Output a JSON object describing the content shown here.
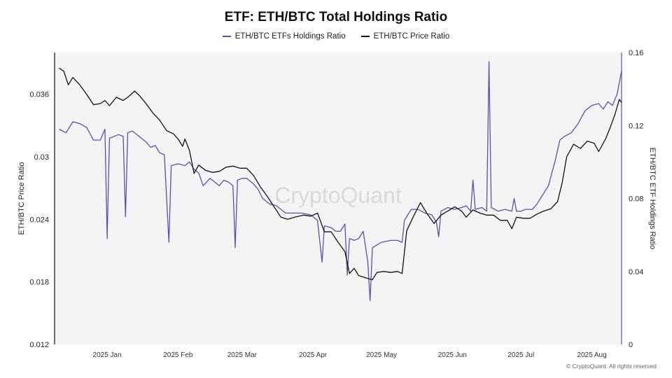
{
  "footer": "© CryptoQuant. All rights reserved",
  "watermark": "CryptoQuant",
  "chart_data": {
    "type": "line",
    "title": "ETF: ETH/BTC Total Holdings Ratio",
    "ylabel_left": "ETH/BTC Price Ratio",
    "ylabel_right": "ETH/BTC ETF Holdings Ratio",
    "ylim_left": [
      0.012,
      0.04
    ],
    "yticks_left": [
      0.012,
      0.018,
      0.024,
      0.03,
      0.036
    ],
    "ytick_labels_left": [
      "0.012",
      "0.018",
      "0.024",
      "0.03",
      "0.036"
    ],
    "ylim_right": [
      0,
      0.16
    ],
    "yticks_right": [
      0,
      0.04,
      0.08,
      0.12,
      0.16
    ],
    "ytick_labels_right": [
      "0",
      "0.04",
      "0.08",
      "0.12",
      "0.16"
    ],
    "xlim": [
      "2024-12-09",
      "2025-08-14"
    ],
    "xticks": [
      "2025-01-01",
      "2025-02-01",
      "2025-03-01",
      "2025-04-01",
      "2025-05-01",
      "2025-06-01",
      "2025-07-01",
      "2025-08-01"
    ],
    "xtick_labels": [
      "2025 Jan",
      "2025 Feb",
      "2025 Mar",
      "2025 Apr",
      "2025 May",
      "2025 Jun",
      "2025 Jul",
      "2025 Aug"
    ],
    "grid": false,
    "legend_position": "top-center",
    "series": [
      {
        "name": "ETH/BTC ETFs Holdings Ratio",
        "axis": "right",
        "color": "#5b4fb0",
        "points": [
          [
            "2024-12-11",
            0.118
          ],
          [
            "2024-12-14",
            0.116
          ],
          [
            "2024-12-17",
            0.122
          ],
          [
            "2024-12-20",
            0.121
          ],
          [
            "2024-12-23",
            0.119
          ],
          [
            "2024-12-26",
            0.112
          ],
          [
            "2024-12-29",
            0.112
          ],
          [
            "2024-12-31",
            0.118
          ],
          [
            "2025-01-01",
            0.058
          ],
          [
            "2025-01-02",
            0.113
          ],
          [
            "2025-01-06",
            0.115
          ],
          [
            "2025-01-08",
            0.114
          ],
          [
            "2025-01-09",
            0.07
          ],
          [
            "2025-01-10",
            0.116
          ],
          [
            "2025-01-12",
            0.117
          ],
          [
            "2025-01-15",
            0.114
          ],
          [
            "2025-01-18",
            0.111
          ],
          [
            "2025-01-20",
            0.108
          ],
          [
            "2025-01-22",
            0.109
          ],
          [
            "2025-01-24",
            0.105
          ],
          [
            "2025-01-26",
            0.104
          ],
          [
            "2025-01-28",
            0.056
          ],
          [
            "2025-01-29",
            0.098
          ],
          [
            "2025-02-01",
            0.099
          ],
          [
            "2025-02-04",
            0.098
          ],
          [
            "2025-02-06",
            0.1
          ],
          [
            "2025-02-08",
            0.096
          ],
          [
            "2025-02-10",
            0.094
          ],
          [
            "2025-02-12",
            0.087
          ],
          [
            "2025-02-15",
            0.091
          ],
          [
            "2025-02-17",
            0.089
          ],
          [
            "2025-02-19",
            0.087
          ],
          [
            "2025-02-21",
            0.09
          ],
          [
            "2025-02-23",
            0.089
          ],
          [
            "2025-02-25",
            0.087
          ],
          [
            "2025-02-26",
            0.053
          ],
          [
            "2025-02-27",
            0.09
          ],
          [
            "2025-03-01",
            0.091
          ],
          [
            "2025-03-03",
            0.091
          ],
          [
            "2025-03-06",
            0.088
          ],
          [
            "2025-03-08",
            0.085
          ],
          [
            "2025-03-10",
            0.08
          ],
          [
            "2025-03-13",
            0.077
          ],
          [
            "2025-03-16",
            0.076
          ],
          [
            "2025-03-20",
            0.072
          ],
          [
            "2025-03-24",
            0.072
          ],
          [
            "2025-03-27",
            0.072
          ],
          [
            "2025-03-31",
            0.071
          ],
          [
            "2025-04-03",
            0.068
          ],
          [
            "2025-04-05",
            0.045
          ],
          [
            "2025-04-06",
            0.065
          ],
          [
            "2025-04-09",
            0.064
          ],
          [
            "2025-04-11",
            0.062
          ],
          [
            "2025-04-13",
            0.062
          ],
          [
            "2025-04-15",
            0.066
          ],
          [
            "2025-04-16",
            0.038
          ],
          [
            "2025-04-17",
            0.058
          ],
          [
            "2025-04-19",
            0.057
          ],
          [
            "2025-04-21",
            0.058
          ],
          [
            "2025-04-23",
            0.062
          ],
          [
            "2025-04-25",
            0.045
          ],
          [
            "2025-04-26",
            0.024
          ],
          [
            "2025-04-27",
            0.053
          ],
          [
            "2025-05-01",
            0.056
          ],
          [
            "2025-05-05",
            0.057
          ],
          [
            "2025-05-08",
            0.057
          ],
          [
            "2025-05-10",
            0.056
          ],
          [
            "2025-05-11",
            0.068
          ],
          [
            "2025-05-14",
            0.074
          ],
          [
            "2025-05-17",
            0.074
          ],
          [
            "2025-05-20",
            0.072
          ],
          [
            "2025-05-23",
            0.071
          ],
          [
            "2025-05-25",
            0.067
          ],
          [
            "2025-05-26",
            0.059
          ],
          [
            "2025-05-27",
            0.073
          ],
          [
            "2025-05-30",
            0.075
          ],
          [
            "2025-06-02",
            0.074
          ],
          [
            "2025-06-05",
            0.075
          ],
          [
            "2025-06-07",
            0.076
          ],
          [
            "2025-06-09",
            0.073
          ],
          [
            "2025-06-10",
            0.09
          ],
          [
            "2025-06-11",
            0.074
          ],
          [
            "2025-06-14",
            0.075
          ],
          [
            "2025-06-16",
            0.073
          ],
          [
            "2025-06-17",
            0.155
          ],
          [
            "2025-06-18",
            0.075
          ],
          [
            "2025-06-21",
            0.073
          ],
          [
            "2025-06-24",
            0.074
          ],
          [
            "2025-06-27",
            0.073
          ],
          [
            "2025-06-28",
            0.08
          ],
          [
            "2025-06-29",
            0.073
          ],
          [
            "2025-07-01",
            0.073
          ],
          [
            "2025-07-03",
            0.074
          ],
          [
            "2025-07-06",
            0.074
          ],
          [
            "2025-07-08",
            0.077
          ],
          [
            "2025-07-10",
            0.081
          ],
          [
            "2025-07-13",
            0.087
          ],
          [
            "2025-07-16",
            0.101
          ],
          [
            "2025-07-18",
            0.112
          ],
          [
            "2025-07-20",
            0.114
          ],
          [
            "2025-07-23",
            0.116
          ],
          [
            "2025-07-26",
            0.121
          ],
          [
            "2025-07-29",
            0.128
          ],
          [
            "2025-08-01",
            0.131
          ],
          [
            "2025-08-04",
            0.132
          ],
          [
            "2025-08-06",
            0.129
          ],
          [
            "2025-08-08",
            0.133
          ],
          [
            "2025-08-10",
            0.131
          ],
          [
            "2025-08-12",
            0.137
          ],
          [
            "2025-08-14",
            0.15
          ]
        ]
      },
      {
        "name": "ETH/BTC Price Ratio",
        "axis": "left",
        "color": "#111111",
        "points": [
          [
            "2024-12-11",
            0.0385
          ],
          [
            "2024-12-13",
            0.0382
          ],
          [
            "2024-12-15",
            0.0369
          ],
          [
            "2024-12-17",
            0.0376
          ],
          [
            "2024-12-20",
            0.0369
          ],
          [
            "2024-12-23",
            0.036
          ],
          [
            "2024-12-26",
            0.035
          ],
          [
            "2024-12-29",
            0.0351
          ],
          [
            "2024-12-31",
            0.0354
          ],
          [
            "2025-01-02",
            0.0349
          ],
          [
            "2025-01-05",
            0.0357
          ],
          [
            "2025-01-08",
            0.0354
          ],
          [
            "2025-01-10",
            0.0357
          ],
          [
            "2025-01-13",
            0.0363
          ],
          [
            "2025-01-15",
            0.0359
          ],
          [
            "2025-01-18",
            0.0351
          ],
          [
            "2025-01-21",
            0.0342
          ],
          [
            "2025-01-24",
            0.0335
          ],
          [
            "2025-01-27",
            0.0325
          ],
          [
            "2025-01-30",
            0.0322
          ],
          [
            "2025-02-01",
            0.0317
          ],
          [
            "2025-02-03",
            0.031
          ],
          [
            "2025-02-04",
            0.0317
          ],
          [
            "2025-02-06",
            0.0306
          ],
          [
            "2025-02-08",
            0.0284
          ],
          [
            "2025-02-10",
            0.0292
          ],
          [
            "2025-02-13",
            0.0287
          ],
          [
            "2025-02-16",
            0.0285
          ],
          [
            "2025-02-19",
            0.0286
          ],
          [
            "2025-02-22",
            0.029
          ],
          [
            "2025-02-25",
            0.0291
          ],
          [
            "2025-02-28",
            0.0289
          ],
          [
            "2025-03-03",
            0.0289
          ],
          [
            "2025-03-06",
            0.0282
          ],
          [
            "2025-03-09",
            0.0271
          ],
          [
            "2025-03-12",
            0.0262
          ],
          [
            "2025-03-15",
            0.0252
          ],
          [
            "2025-03-18",
            0.0242
          ],
          [
            "2025-03-21",
            0.024
          ],
          [
            "2025-03-24",
            0.0242
          ],
          [
            "2025-03-28",
            0.0244
          ],
          [
            "2025-03-31",
            0.0243
          ],
          [
            "2025-04-03",
            0.0246
          ],
          [
            "2025-04-06",
            0.0228
          ],
          [
            "2025-04-09",
            0.0228
          ],
          [
            "2025-04-12",
            0.0218
          ],
          [
            "2025-04-15",
            0.0209
          ],
          [
            "2025-04-17",
            0.0188
          ],
          [
            "2025-04-19",
            0.0193
          ],
          [
            "2025-04-21",
            0.0186
          ],
          [
            "2025-04-24",
            0.0184
          ],
          [
            "2025-04-27",
            0.0182
          ],
          [
            "2025-04-29",
            0.0189
          ],
          [
            "2025-05-02",
            0.019
          ],
          [
            "2025-05-05",
            0.0189
          ],
          [
            "2025-05-08",
            0.019
          ],
          [
            "2025-05-10",
            0.0188
          ],
          [
            "2025-05-12",
            0.0229
          ],
          [
            "2025-05-15",
            0.0243
          ],
          [
            "2025-05-18",
            0.0256
          ],
          [
            "2025-05-21",
            0.0245
          ],
          [
            "2025-05-24",
            0.0236
          ],
          [
            "2025-05-27",
            0.0244
          ],
          [
            "2025-05-30",
            0.0248
          ],
          [
            "2025-06-02",
            0.0252
          ],
          [
            "2025-06-05",
            0.0248
          ],
          [
            "2025-06-07",
            0.0242
          ],
          [
            "2025-06-10",
            0.0249
          ],
          [
            "2025-06-13",
            0.0246
          ],
          [
            "2025-06-16",
            0.0244
          ],
          [
            "2025-06-19",
            0.0244
          ],
          [
            "2025-06-22",
            0.0239
          ],
          [
            "2025-06-25",
            0.0239
          ],
          [
            "2025-06-27",
            0.0231
          ],
          [
            "2025-06-29",
            0.0242
          ],
          [
            "2025-07-02",
            0.0241
          ],
          [
            "2025-07-05",
            0.0241
          ],
          [
            "2025-07-08",
            0.0245
          ],
          [
            "2025-07-11",
            0.0248
          ],
          [
            "2025-07-14",
            0.025
          ],
          [
            "2025-07-17",
            0.0257
          ],
          [
            "2025-07-19",
            0.0275
          ],
          [
            "2025-07-21",
            0.03
          ],
          [
            "2025-07-24",
            0.0312
          ],
          [
            "2025-07-27",
            0.0308
          ],
          [
            "2025-07-30",
            0.0315
          ],
          [
            "2025-08-02",
            0.0313
          ],
          [
            "2025-08-04",
            0.0305
          ],
          [
            "2025-08-07",
            0.0317
          ],
          [
            "2025-08-09",
            0.0328
          ],
          [
            "2025-08-11",
            0.034
          ],
          [
            "2025-08-13",
            0.0355
          ],
          [
            "2025-08-14",
            0.0352
          ]
        ]
      }
    ]
  }
}
